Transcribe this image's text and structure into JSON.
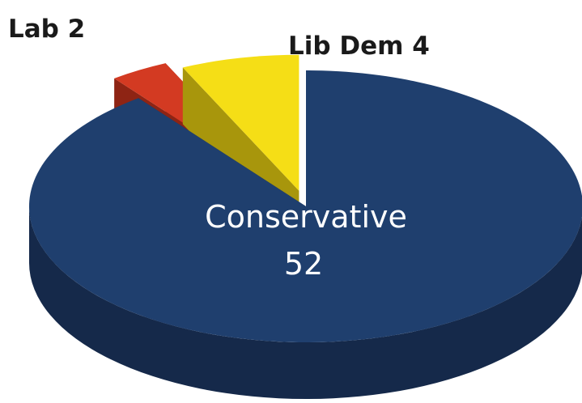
{
  "chart_data": {
    "type": "pie",
    "style": "3d-exploded",
    "slices": [
      {
        "label": "Conservative",
        "value": 52,
        "color": "#1f3f6e",
        "side_color": "#15294a"
      },
      {
        "label": "Lab",
        "value": 2,
        "color": "#d33a22",
        "side_color": "#8e2414"
      },
      {
        "label": "Lib Dem",
        "value": 4,
        "color": "#f5de16",
        "side_color": "#a8960c"
      }
    ],
    "labels": {
      "conservative_name": "Conservative",
      "conservative_value": "52",
      "lab": "Lab 2",
      "lib_dem": "Lib Dem 4"
    }
  }
}
